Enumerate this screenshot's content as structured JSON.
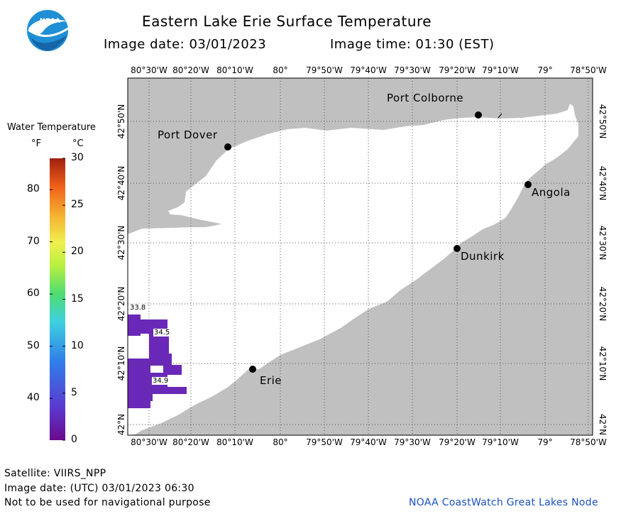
{
  "title": "Eastern Lake Erie Surface Temperature",
  "image_date_label": "Image date: 03/01/2023",
  "image_time_label": "Image time: 01:30 (EST)",
  "logo_text": "NOAA",
  "legend": {
    "title": "Water Temperature",
    "unit_f": "°F",
    "unit_c": "°C",
    "fahrenheit_ticks": [
      "80",
      "70",
      "60",
      "50",
      "40"
    ],
    "celsius_ticks": [
      "30",
      "25",
      "20",
      "15",
      "10",
      "5",
      "0"
    ]
  },
  "axes": {
    "longitude_ticks": [
      "80°30'W",
      "80°20'W",
      "80°10'W",
      "80°",
      "79°50'W",
      "79°40'W",
      "79°30'W",
      "79°20'W",
      "79°10'W",
      "79°",
      "78°50'W"
    ],
    "latitude_ticks": [
      "42°50'N",
      "42°40'N",
      "42°30'N",
      "42°20'N",
      "42°10'N",
      "42°N"
    ]
  },
  "cities": [
    {
      "name": "Port Colborne"
    },
    {
      "name": "Port Dover"
    },
    {
      "name": "Angola"
    },
    {
      "name": "Dunkirk"
    },
    {
      "name": "Erie"
    }
  ],
  "temperature_labels": [
    "33.8",
    "34.5",
    "34.9"
  ],
  "footer": {
    "satellite": "Satellite: VIIRS_NPP",
    "utc_date": "Image date: (UTC) 03/01/2023  06:30",
    "disclaimer": "Not to be used for navigational purpose",
    "credit": "NOAA CoastWatch Great Lakes Node"
  },
  "colors": {
    "land": "#c0c0c0",
    "water": "#ffffff",
    "ice_temp": "#6a28b8",
    "grid": "#555555",
    "credit": "#1a4fbf"
  }
}
